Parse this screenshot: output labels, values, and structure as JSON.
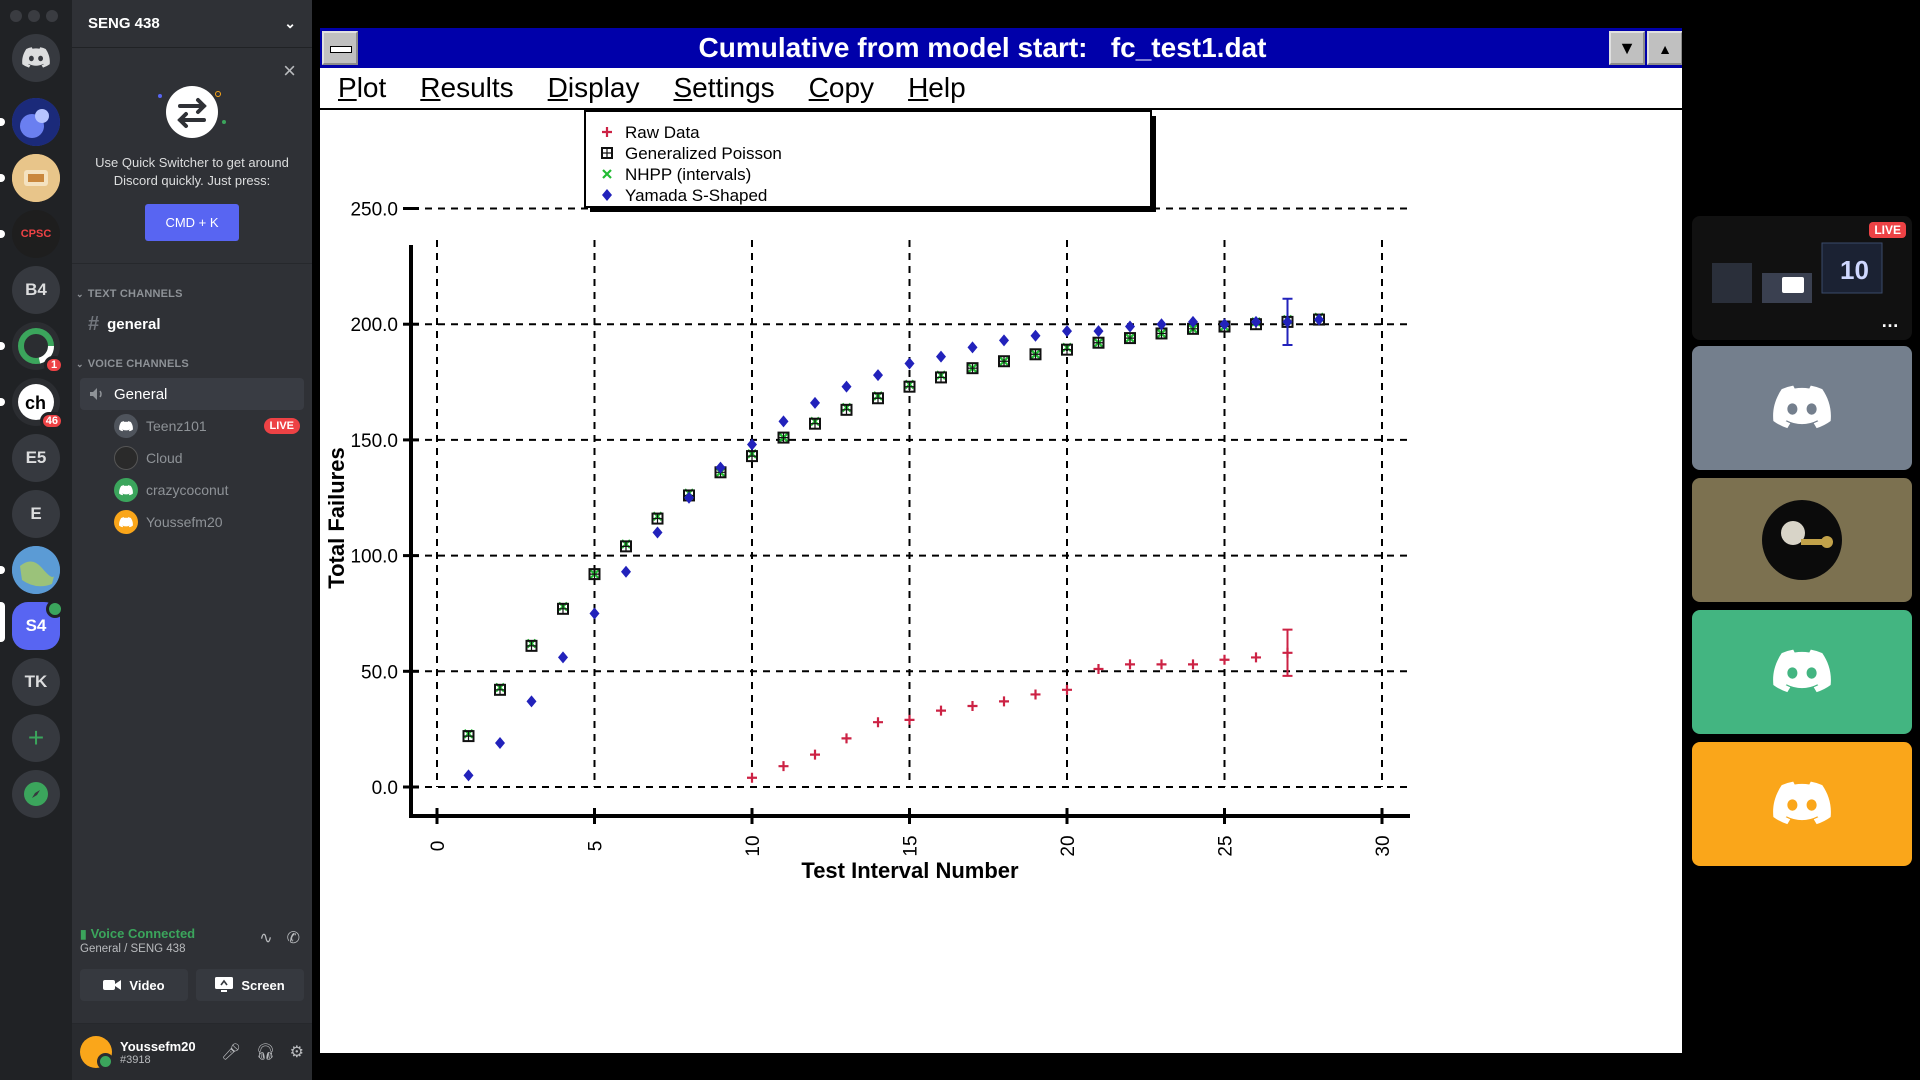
{
  "sidebar": {
    "server_name": "SENG 438",
    "quick_switcher": {
      "description": "Use Quick Switcher to get around Discord quickly. Just press:",
      "shortcut": "CMD + K"
    },
    "text_category": "TEXT CHANNELS",
    "text_channel": "general",
    "voice_category": "VOICE CHANNELS",
    "voice_channel": "General",
    "voice_users": [
      {
        "name": "Teenz101",
        "live": "LIVE",
        "avatar_color": "#4f545c"
      },
      {
        "name": "Cloud",
        "live": "",
        "avatar_color": "#2a2a2a"
      },
      {
        "name": "crazycoconut",
        "live": "",
        "avatar_color": "#3ba55c"
      },
      {
        "name": "Youssefm20",
        "live": "",
        "avatar_color": "#faa61a"
      }
    ],
    "voice_panel": {
      "status": "Voice Connected",
      "location": "General / SENG 438",
      "video_label": "Video",
      "screen_label": "Screen"
    },
    "user": {
      "name": "Youssefm20",
      "tag": "#3918"
    }
  },
  "rail": {
    "servers": [
      {
        "label": "",
        "icon": "discord-home-icon",
        "color": "#36393f"
      },
      {
        "label": "",
        "icon": "server-image-1",
        "color": "#3b4bb8"
      },
      {
        "label": "",
        "icon": "server-image-2",
        "color": "#d9a45a"
      },
      {
        "label": "CPSC",
        "icon": "server-cpsc",
        "color": "#1e1e1e"
      },
      {
        "label": "B4",
        "icon": "",
        "color": "#36393f"
      },
      {
        "label": "",
        "icon": "server-ring",
        "color": "#2b2d31",
        "badge": "1"
      },
      {
        "label": "",
        "icon": "server-ch",
        "color": "#2b2d31",
        "badge": "46"
      },
      {
        "label": "E5",
        "icon": "",
        "color": "#36393f"
      },
      {
        "label": "E",
        "icon": "",
        "color": "#36393f"
      },
      {
        "label": "",
        "icon": "server-globe",
        "color": "#4b7fb5"
      },
      {
        "label": "S4",
        "icon": "",
        "color": "#5865f2",
        "active": true
      },
      {
        "label": "TK",
        "icon": "",
        "color": "#36393f"
      }
    ]
  },
  "app_window": {
    "title": "Cumulative from model start:   fc_test1.dat",
    "menu": [
      {
        "underline": "P",
        "rest": "lot"
      },
      {
        "underline": "R",
        "rest": "esults"
      },
      {
        "underline": "D",
        "rest": "isplay"
      },
      {
        "underline": "S",
        "rest": "ettings"
      },
      {
        "underline": "C",
        "rest": "opy"
      },
      {
        "underline": "H",
        "rest": "elp"
      }
    ]
  },
  "chart_data": {
    "type": "scatter",
    "title": "",
    "xlabel": "Test Interval Number",
    "ylabel": "Total Failures",
    "xlim": [
      0,
      30
    ],
    "ylim": [
      0,
      250
    ],
    "x_ticks": [
      "0",
      "5",
      "10",
      "15",
      "20",
      "25",
      "30"
    ],
    "y_ticks": [
      "0.0",
      "50.0",
      "100.0",
      "150.0",
      "200.0",
      "250.0"
    ],
    "grid": true,
    "legend_position": "top",
    "series": [
      {
        "name": "Raw Data",
        "marker": "plus",
        "color": "#cc2244",
        "x": [
          10,
          11,
          12,
          13,
          14,
          15,
          16,
          17,
          18,
          19,
          20,
          21,
          22,
          23,
          24,
          25,
          26,
          27
        ],
        "y": [
          4,
          9,
          14,
          21,
          28,
          29,
          33,
          35,
          37,
          40,
          42,
          51,
          53,
          53,
          53,
          55,
          56,
          58
        ],
        "error_bar": {
          "x": 27,
          "low": 48,
          "high": 68
        }
      },
      {
        "name": "Generalized Poisson",
        "marker": "square",
        "color": "#111111",
        "x": [
          1,
          2,
          3,
          4,
          5,
          6,
          7,
          8,
          9,
          10,
          11,
          12,
          13,
          14,
          15,
          16,
          17,
          18,
          19,
          20,
          21,
          22,
          23,
          24,
          25,
          26,
          27,
          28
        ],
        "y": [
          22,
          42,
          61,
          77,
          92,
          104,
          116,
          126,
          136,
          143,
          151,
          157,
          163,
          168,
          173,
          177,
          181,
          184,
          187,
          189,
          192,
          194,
          196,
          198,
          199,
          200,
          201,
          202
        ]
      },
      {
        "name": "NHPP (intervals)",
        "marker": "x",
        "color": "#22bb33",
        "x": [
          1,
          2,
          3,
          4,
          5,
          6,
          7,
          8,
          9,
          10,
          11,
          12,
          13,
          14,
          15,
          16,
          17,
          18,
          19,
          20,
          21,
          22,
          23,
          24,
          25,
          26,
          27,
          28
        ],
        "y": [
          23,
          43,
          62,
          78,
          92,
          105,
          117,
          127,
          136,
          144,
          151,
          158,
          164,
          169,
          174,
          178,
          181,
          184,
          187,
          190,
          192,
          194,
          196,
          198,
          199,
          201,
          202,
          203
        ]
      },
      {
        "name": "Yamada S-Shaped",
        "marker": "diamond",
        "color": "#2222bb",
        "x": [
          1,
          2,
          3,
          4,
          5,
          6,
          7,
          8,
          9,
          10,
          11,
          12,
          13,
          14,
          15,
          16,
          17,
          18,
          19,
          20,
          21,
          22,
          23,
          24,
          25,
          26,
          27,
          28
        ],
        "y": [
          5,
          19,
          37,
          56,
          75,
          93,
          110,
          125,
          138,
          148,
          158,
          166,
          173,
          178,
          183,
          186,
          190,
          193,
          195,
          197,
          197,
          199,
          200,
          201,
          200,
          201,
          201,
          202
        ],
        "error_bar": {
          "x": 27,
          "low": 191,
          "high": 211
        }
      }
    ]
  },
  "tiles": [
    {
      "name": "stream-preview",
      "color": "#000000",
      "live": "LIVE"
    },
    {
      "name": "participant-1",
      "color": "#747f8d",
      "live": ""
    },
    {
      "name": "participant-2",
      "color": "#7c7150",
      "live": ""
    },
    {
      "name": "participant-3",
      "color": "#43b581",
      "live": ""
    },
    {
      "name": "participant-4",
      "color": "#faa61a",
      "live": ""
    }
  ]
}
